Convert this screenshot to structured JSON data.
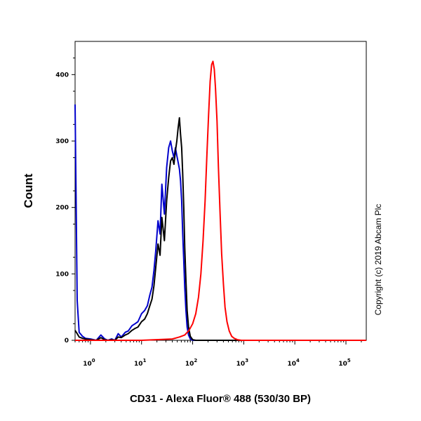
{
  "chart_data": {
    "type": "line",
    "xlabel": "CD31 - Alexa Fluor® 488 (530/30 BP)",
    "ylabel": "Count",
    "x_scale": "log",
    "xlim": [
      0.5,
      250000
    ],
    "ylim": [
      0,
      450
    ],
    "x_ticks": [
      {
        "value": 1,
        "base": "10",
        "exp": "0"
      },
      {
        "value": 10,
        "base": "10",
        "exp": "1"
      },
      {
        "value": 100,
        "base": "10",
        "exp": "2"
      },
      {
        "value": 1000,
        "base": "10",
        "exp": "3"
      },
      {
        "value": 10000,
        "base": "10",
        "exp": "4"
      },
      {
        "value": 100000,
        "base": "10",
        "exp": "5"
      }
    ],
    "y_ticks": [
      0,
      100,
      200,
      300,
      400
    ],
    "grid": false,
    "annotation": "Copyright (c) 2019 Abcam Plc",
    "series": [
      {
        "color": "#0000cc",
        "x": [
          0.5,
          0.55,
          0.6,
          0.7,
          0.8,
          1.0,
          1.3,
          1.6,
          1.9,
          2.2,
          2.6,
          3.0,
          3.5,
          4.0,
          4.8,
          5.5,
          6.5,
          7.5,
          8.5,
          10,
          11.5,
          13,
          14.5,
          16,
          17.5,
          19,
          21,
          23,
          25,
          28,
          31,
          34,
          37,
          40,
          43,
          46,
          49,
          52,
          55,
          58,
          61,
          64,
          67,
          70,
          74,
          78,
          83,
          90,
          100,
          115,
          130,
          150,
          200,
          300,
          1000,
          250000
        ],
        "y": [
          355,
          60,
          12,
          6,
          3,
          2,
          0,
          8,
          2,
          0,
          2,
          0,
          10,
          5,
          12,
          14,
          22,
          25,
          28,
          40,
          45,
          52,
          68,
          80,
          105,
          135,
          180,
          160,
          235,
          190,
          260,
          290,
          300,
          285,
          275,
          290,
          278,
          268,
          258,
          240,
          210,
          160,
          120,
          80,
          45,
          20,
          8,
          2,
          0,
          0,
          0,
          0,
          0,
          0,
          0,
          0
        ]
      },
      {
        "color": "#000000",
        "x": [
          0.5,
          0.55,
          0.6,
          0.7,
          0.8,
          1.0,
          1.3,
          1.6,
          1.9,
          2.2,
          2.6,
          3.0,
          3.5,
          4.0,
          4.8,
          5.5,
          6.5,
          7.5,
          8.5,
          10,
          11.5,
          13,
          14.5,
          16,
          17.5,
          19,
          21,
          23,
          25,
          28,
          31,
          34,
          37,
          40,
          43,
          46,
          49,
          52,
          55,
          58,
          61,
          64,
          67,
          70,
          74,
          78,
          83,
          90,
          100,
          115,
          130,
          150,
          200,
          300,
          1000,
          250000
        ],
        "y": [
          15,
          10,
          5,
          3,
          2,
          1,
          0,
          4,
          1,
          0,
          1,
          0,
          5,
          4,
          8,
          10,
          15,
          18,
          20,
          28,
          32,
          40,
          52,
          62,
          82,
          110,
          145,
          128,
          185,
          150,
          210,
          245,
          270,
          275,
          265,
          285,
          300,
          320,
          335,
          310,
          290,
          250,
          200,
          140,
          90,
          45,
          20,
          6,
          1,
          0,
          0,
          0,
          0,
          0,
          0,
          0
        ]
      },
      {
        "color": "#ff0000",
        "x": [
          0.5,
          10,
          40,
          55,
          70,
          85,
          100,
          115,
          130,
          145,
          160,
          175,
          190,
          205,
          220,
          235,
          250,
          265,
          280,
          300,
          320,
          345,
          370,
          400,
          430,
          470,
          520,
          580,
          650,
          750,
          900,
          1200,
          250000
        ],
        "y": [
          0,
          0,
          2,
          5,
          8,
          15,
          25,
          40,
          65,
          100,
          150,
          210,
          280,
          340,
          390,
          415,
          420,
          408,
          380,
          330,
          260,
          190,
          130,
          85,
          50,
          28,
          14,
          6,
          3,
          1,
          0,
          0,
          0
        ]
      }
    ]
  }
}
